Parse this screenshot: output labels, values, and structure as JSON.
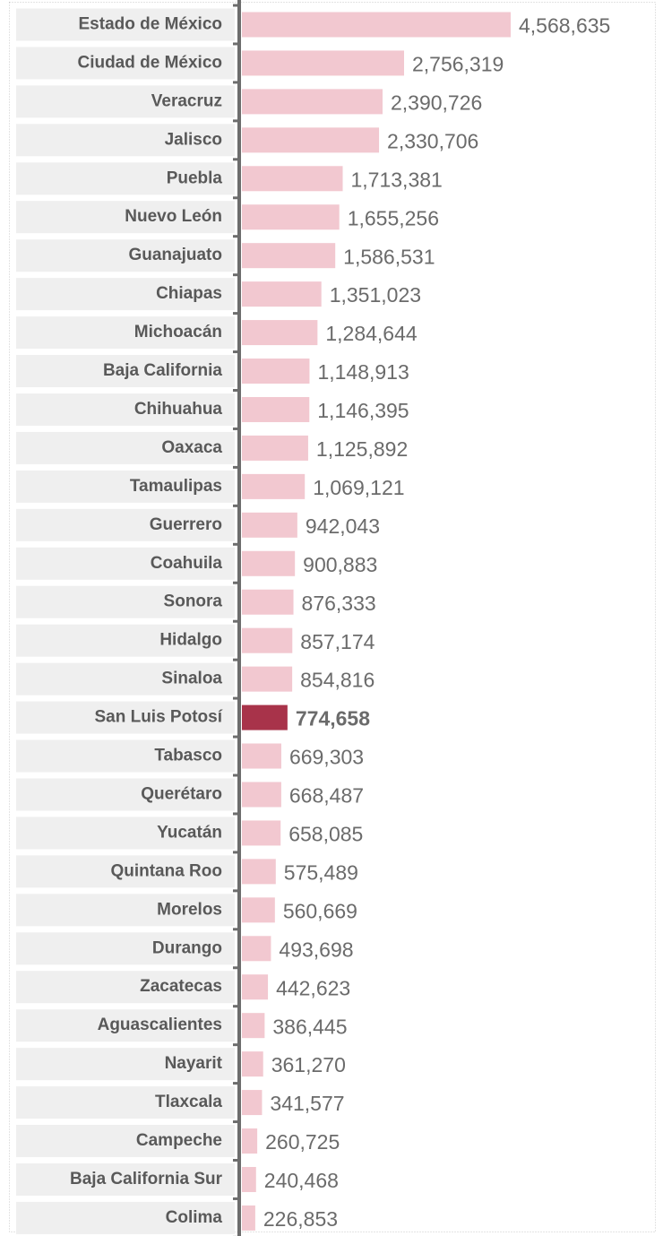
{
  "chart_data": {
    "type": "barh",
    "categories": [
      "Estado de México",
      "Ciudad de México",
      "Veracruz",
      "Jalisco",
      "Puebla",
      "Nuevo León",
      "Guanajuato",
      "Chiapas",
      "Michoacán",
      "Baja California",
      "Chihuahua",
      "Oaxaca",
      "Tamaulipas",
      "Guerrero",
      "Coahuila",
      "Sonora",
      "Hidalgo",
      "Sinaloa",
      "San Luis Potosí",
      "Tabasco",
      "Querétaro",
      "Yucatán",
      "Quintana Roo",
      "Morelos",
      "Durango",
      "Zacatecas",
      "Aguascalientes",
      "Nayarit",
      "Tlaxcala",
      "Campeche",
      "Baja California Sur",
      "Colima"
    ],
    "values": [
      4568635,
      2756319,
      2390726,
      2330706,
      1713381,
      1655256,
      1586531,
      1351023,
      1284644,
      1148913,
      1146395,
      1125892,
      1069121,
      942043,
      900883,
      876333,
      857174,
      854816,
      774658,
      669303,
      668487,
      658085,
      575489,
      560669,
      493698,
      442623,
      386445,
      361270,
      341577,
      260725,
      240468,
      226853
    ],
    "value_labels": [
      "4,568,635",
      "2,756,319",
      "2,390,726",
      "2,330,706",
      "1,713,381",
      "1,655,256",
      "1,586,531",
      "1,351,023",
      "1,284,644",
      "1,148,913",
      "1,146,395",
      "1,125,892",
      "1,069,121",
      "942,043",
      "900,883",
      "876,333",
      "857,174",
      "854,816",
      "774,658",
      "669,303",
      "668,487",
      "658,085",
      "575,489",
      "560,669",
      "493,698",
      "442,623",
      "386,445",
      "361,270",
      "341,577",
      "260,725",
      "240,468",
      "226,853"
    ],
    "color": "#f2c8d0",
    "highlight_color": "#a8334a",
    "highlight_index": 18
  }
}
